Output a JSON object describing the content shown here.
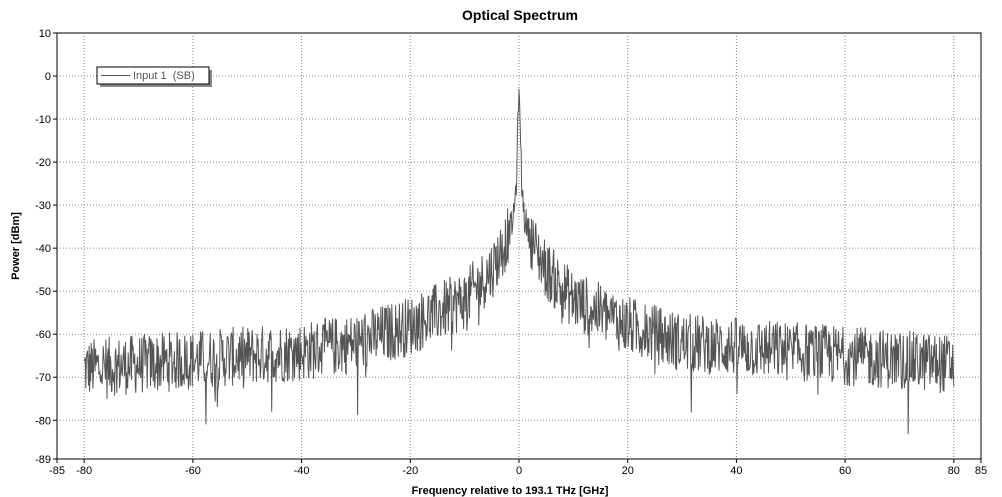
{
  "chart_data": {
    "type": "line",
    "title": "Optical Spectrum",
    "xlabel": "Frequency relative to 193.1 THz [GHz]",
    "ylabel": "Power [dBm]",
    "xlim": [
      -85,
      85
    ],
    "ylim": [
      -89,
      10
    ],
    "xticks": [
      -85,
      -80,
      -60,
      -40,
      -20,
      0,
      20,
      40,
      60,
      80,
      85
    ],
    "yticks": [
      10,
      0,
      -10,
      -20,
      -30,
      -40,
      -50,
      -60,
      -70,
      -80,
      -89
    ],
    "grid": true,
    "legend_position": "top-left",
    "series": [
      {
        "name": "Input 1  (SB)",
        "color": "#555555",
        "envelope": {
          "x": [
            -80,
            -70,
            -60,
            -50,
            -40,
            -30,
            -20,
            -15,
            -10,
            -7,
            -5,
            -3,
            -2,
            -1,
            -0.5,
            0,
            0.5,
            1,
            2,
            3,
            5,
            7,
            10,
            15,
            20,
            30,
            40,
            50,
            60,
            70,
            80
          ],
          "y": [
            -68,
            -67,
            -66,
            -65,
            -64,
            -62,
            -58,
            -55,
            -52,
            -48,
            -45,
            -40,
            -37,
            -33,
            -25,
            -3,
            -25,
            -33,
            -37,
            -40,
            -45,
            -48,
            -52,
            -55,
            -58,
            -62,
            -63,
            -64,
            -65,
            -66,
            -67
          ]
        },
        "noise_amplitude_db": 14,
        "peak": {
          "x": 0,
          "y": -3
        },
        "x_start": -80,
        "x_end": 80,
        "n_points": 1600
      }
    ]
  }
}
